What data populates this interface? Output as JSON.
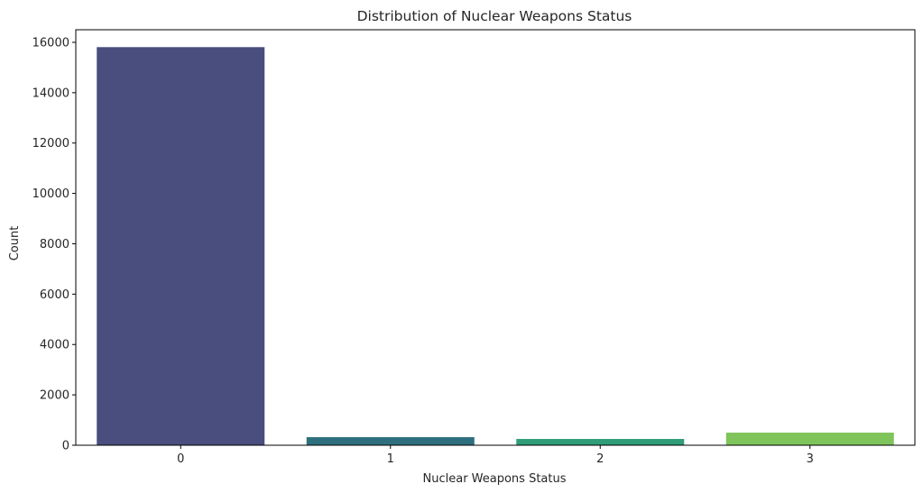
{
  "chart_data": {
    "type": "bar",
    "title": "Distribution of Nuclear Weapons Status",
    "xlabel": "Nuclear Weapons Status",
    "ylabel": "Count",
    "categories": [
      "0",
      "1",
      "2",
      "3"
    ],
    "values": [
      15810,
      320,
      250,
      500
    ],
    "colors": [
      "#4a4e7e",
      "#2e6f7e",
      "#2f9d78",
      "#7ec45a"
    ],
    "ylim": [
      0,
      16500
    ],
    "yticks": [
      0,
      2000,
      4000,
      6000,
      8000,
      10000,
      12000,
      14000,
      16000
    ],
    "grid": false,
    "legend": false
  }
}
